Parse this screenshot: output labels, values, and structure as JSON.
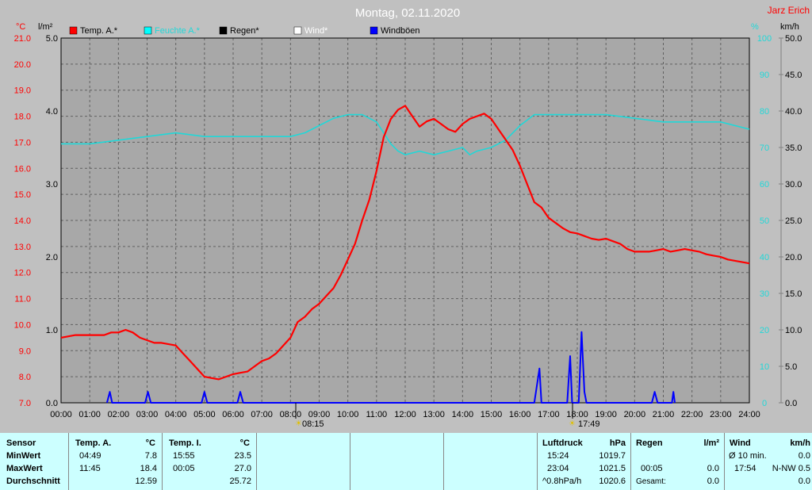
{
  "header": {
    "title": "Montag, 02.11.2020",
    "author": "Jarz Erich",
    "unit_temp": "°C",
    "unit_rain": "l/m²",
    "unit_humidity": "%",
    "unit_wind": "km/h"
  },
  "legend": [
    {
      "label": "Temp. A.*",
      "color": "#ff0000"
    },
    {
      "label": "Feuchte A.*",
      "color": "#00ffff"
    },
    {
      "label": "Regen*",
      "color": "#000000"
    },
    {
      "label": "Wind*",
      "color": "#ffffff"
    },
    {
      "label": "Windböen",
      "color": "#0000ff"
    }
  ],
  "markers": {
    "sunrise": "08:15",
    "sunset": "17:49"
  },
  "colors": {
    "background": "#c0c0c0",
    "plot": "#a8a8a8",
    "temperature": "#ff0000",
    "humidity": "#20d8d8",
    "gusts": "#0000ff",
    "table": "#ccffff"
  },
  "chart_data": {
    "type": "line",
    "title": "Montag, 02.11.2020",
    "x_ticks": [
      "00:00",
      "01:00",
      "02:00",
      "03:00",
      "04:00",
      "05:00",
      "06:00",
      "07:00",
      "08:00",
      "09:00",
      "10:00",
      "11:00",
      "12:00",
      "13:00",
      "14:00",
      "15:00",
      "16:00",
      "17:00",
      "18:00",
      "19:00",
      "20:00",
      "21:00",
      "22:00",
      "23:00",
      "24:00"
    ],
    "xlim": [
      0,
      24
    ],
    "axes": {
      "temp": {
        "ylim": [
          7.0,
          21.0
        ],
        "ticks": [
          "7.0",
          "8.0",
          "9.0",
          "10.0",
          "11.0",
          "12.0",
          "13.0",
          "14.0",
          "15.0",
          "16.0",
          "17.0",
          "18.0",
          "19.0",
          "20.0",
          "21.0"
        ]
      },
      "rain": {
        "ylim": [
          0.0,
          5.0
        ],
        "ticks": [
          "0.0",
          "1.0",
          "2.0",
          "3.0",
          "4.0",
          "5.0"
        ]
      },
      "humidity": {
        "ylim": [
          0,
          100
        ],
        "ticks": [
          "0",
          "10",
          "20",
          "30",
          "40",
          "50",
          "60",
          "70",
          "80",
          "90",
          "100"
        ]
      },
      "wind": {
        "ylim": [
          0.0,
          50.0
        ],
        "ticks": [
          "0.0",
          "5.0",
          "10.0",
          "15.0",
          "20.0",
          "25.0",
          "30.0",
          "35.0",
          "40.0",
          "45.0",
          "50.0"
        ]
      }
    },
    "grid": true,
    "series": [
      {
        "name": "Temp. A.*",
        "axis": "temp",
        "x": [
          0,
          0.5,
          1,
          1.5,
          1.75,
          2,
          2.25,
          2.5,
          2.75,
          3,
          3.25,
          3.5,
          4,
          4.25,
          4.5,
          4.75,
          5,
          5.25,
          5.5,
          5.75,
          6,
          6.25,
          6.5,
          6.75,
          7,
          7.25,
          7.5,
          7.75,
          8,
          8.25,
          8.5,
          8.75,
          9,
          9.25,
          9.5,
          9.75,
          10,
          10.25,
          10.5,
          10.75,
          11,
          11.25,
          11.5,
          11.75,
          12,
          12.25,
          12.5,
          12.75,
          13,
          13.25,
          13.5,
          13.75,
          14,
          14.25,
          14.5,
          14.75,
          15,
          15.25,
          15.5,
          15.75,
          16,
          16.25,
          16.5,
          16.75,
          17,
          17.25,
          17.5,
          17.75,
          18,
          18.25,
          18.5,
          18.75,
          19,
          19.25,
          19.5,
          19.75,
          20,
          20.25,
          20.5,
          20.75,
          21,
          21.25,
          21.5,
          21.75,
          22,
          22.25,
          22.5,
          22.75,
          23,
          23.25,
          23.5,
          23.75,
          24
        ],
        "y": [
          9.5,
          9.6,
          9.6,
          9.6,
          9.7,
          9.7,
          9.8,
          9.7,
          9.5,
          9.4,
          9.3,
          9.3,
          9.2,
          8.9,
          8.6,
          8.3,
          8.0,
          7.95,
          7.9,
          8.0,
          8.1,
          8.15,
          8.2,
          8.4,
          8.6,
          8.7,
          8.9,
          9.2,
          9.5,
          10.1,
          10.3,
          10.6,
          10.8,
          11.1,
          11.4,
          11.9,
          12.5,
          13.1,
          14.0,
          14.8,
          15.9,
          17.2,
          17.9,
          18.25,
          18.4,
          18.0,
          17.6,
          17.8,
          17.9,
          17.7,
          17.5,
          17.4,
          17.7,
          17.9,
          18.0,
          18.1,
          17.9,
          17.5,
          17.1,
          16.7,
          16.1,
          15.4,
          14.7,
          14.5,
          14.1,
          13.9,
          13.7,
          13.55,
          13.5,
          13.4,
          13.3,
          13.25,
          13.3,
          13.2,
          13.1,
          12.9,
          12.8,
          12.8,
          12.8,
          12.85,
          12.9,
          12.8,
          12.85,
          12.9,
          12.85,
          12.8,
          12.7,
          12.65,
          12.6,
          12.5,
          12.45,
          12.4,
          12.35
        ]
      },
      {
        "name": "Feuchte A.*",
        "axis": "humidity",
        "x": [
          0,
          1,
          2,
          3,
          4,
          5,
          6,
          7,
          7.5,
          8,
          8.5,
          9,
          9.5,
          10,
          10.5,
          11,
          11.25,
          11.5,
          11.75,
          12,
          12.5,
          13,
          13.5,
          14,
          14.25,
          14.5,
          15,
          15.5,
          16,
          16.5,
          17,
          18,
          19,
          20,
          21,
          22,
          23,
          24
        ],
        "y": [
          71,
          71,
          72,
          73,
          74,
          73,
          73,
          73,
          73,
          73,
          74,
          76,
          78,
          79,
          79,
          77,
          74,
          71,
          69,
          68,
          69,
          68,
          69,
          70,
          68,
          69,
          70,
          72,
          76,
          79,
          79,
          79,
          79,
          78,
          77,
          77,
          77,
          75
        ]
      },
      {
        "name": "Windböen",
        "axis": "wind",
        "x": [
          1.6,
          1.7,
          1.78,
          2.93,
          3.03,
          3.13,
          4.9,
          5.0,
          5.1,
          6.15,
          6.25,
          6.35,
          16.5,
          16.68,
          16.75,
          17.65,
          17.75,
          17.82,
          18.05,
          18.15,
          18.25,
          18.32,
          20.6,
          20.7,
          20.8,
          21.3,
          21.35,
          21.4
        ],
        "y": [
          0,
          1.5,
          0,
          0,
          1.5,
          0,
          0,
          1.5,
          0,
          0,
          1.5,
          0,
          0,
          4.7,
          0,
          0,
          6.4,
          0,
          0,
          9.7,
          1.5,
          0,
          0,
          1.5,
          0,
          0,
          1.5,
          0
        ]
      }
    ]
  },
  "table": {
    "sensor": {
      "header": "Sensor",
      "rows": [
        "MinWert",
        "MaxWert",
        "Durchschnitt"
      ]
    },
    "temp_a": {
      "header": "Temp. A.",
      "unit": "°C",
      "min_time": "04:49",
      "min_val": "7.8",
      "max_time": "11:45",
      "max_val": "18.4",
      "avg": "12.59"
    },
    "temp_i": {
      "header": "Temp. I.",
      "unit": "°C",
      "min_time": "15:55",
      "min_val": "23.5",
      "max_time": "00:05",
      "max_val": "27.0",
      "avg": "25.72"
    },
    "pressure": {
      "header": "Luftdruck",
      "unit": "hPa",
      "min_time": "15:24",
      "min_val": "1019.7",
      "max_time": "23:04",
      "max_val": "1021.5",
      "trend": "^0.8hPa/h",
      "avg": "1020.6"
    },
    "rain": {
      "header": "Regen",
      "unit": "l/m²",
      "max_time": "00:05",
      "max_val": "0.0",
      "total_label": "Gesamt:",
      "total": "0.0"
    },
    "wind": {
      "header": "Wind",
      "unit": "km/h",
      "avg_label": "Ø 10 min.",
      "avg_val": "0.0",
      "max_time": "17:54",
      "max_val": "N-NW 0.5",
      "last": "0.0"
    }
  }
}
